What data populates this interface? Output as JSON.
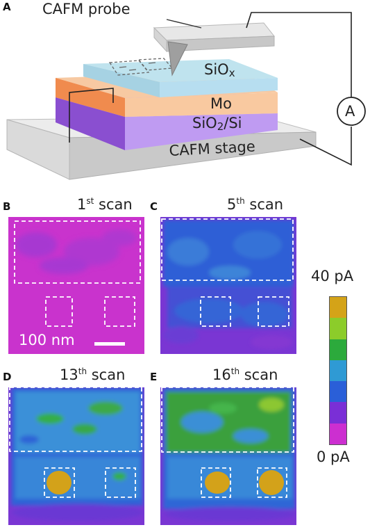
{
  "panel_a": {
    "letter": "A",
    "probe_label": "CAFM probe",
    "layer_top": "SiO",
    "layer_top_sub": "x",
    "layer_mid": "Mo",
    "layer_bottom": "SiO",
    "layer_bottom_sub": "2",
    "layer_bottom_suffix": "/Si",
    "stage_label": "CAFM stage",
    "ammeter_label": "A"
  },
  "scans": [
    {
      "letter": "B",
      "ordinal": "1",
      "suffix": "st",
      "word": "scan"
    },
    {
      "letter": "C",
      "ordinal": "5",
      "suffix": "th",
      "word": "scan"
    },
    {
      "letter": "D",
      "ordinal": "13",
      "suffix": "th",
      "word": "scan"
    },
    {
      "letter": "E",
      "ordinal": "16",
      "suffix": "th",
      "word": "scan"
    }
  ],
  "scale_bar_label": "100 nm",
  "colorbar": {
    "max_label": "40 pA",
    "min_label": "0 pA",
    "colors": [
      "#d4a318",
      "#8ccc2a",
      "#2caa3c",
      "#2f9ad4",
      "#2a5fd8",
      "#7a2fd6",
      "#cc2fd0"
    ]
  },
  "colors": {
    "magenta_bg": "#c831cc",
    "purple": "#7e34d2",
    "blue": "#2b62d6",
    "lightblue": "#3a94d8",
    "green": "#35b33e",
    "lightgreen": "#88cc30",
    "gold": "#d3a21a"
  }
}
